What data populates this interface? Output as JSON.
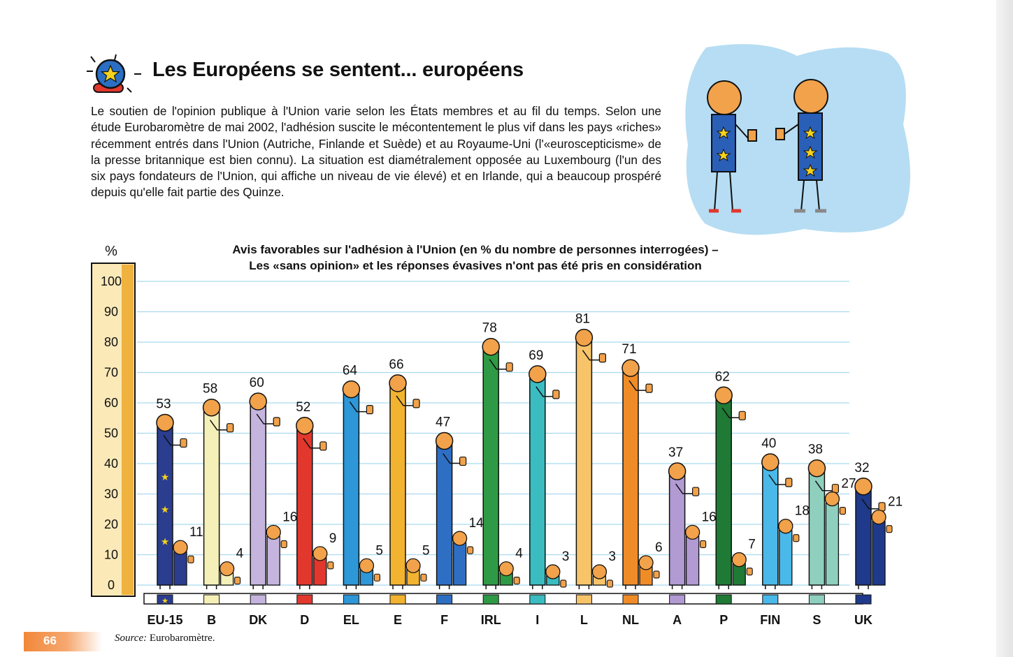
{
  "page": {
    "title": "Les Européens se sentent... européens",
    "intro": "Le soutien de l'opinion publique à l'Union varie selon les États membres et au fil du temps. Selon une étude Eurobaromètre de mai 2002, l'adhésion suscite le mécontentement le plus vif dans les pays «riches» récemment entrés dans l'Union (Autriche, Finlande et Suède) et au Royaume-Uni (l'«euroscepticisme» de la presse britannique est bien connu). La situation est diamétralement opposée au Luxembourg (l'un des six pays fondateurs de l'Union, qui affiche un niveau de vie élevé) et en Irlande, qui a beaucoup prospéré depuis qu'elle fait partie des Quinze.",
    "page_number": "66",
    "source_label": "Source:",
    "source_value": "Eurobaromètre."
  },
  "chart_data": {
    "type": "bar",
    "title_line1": "Avis favorables sur l'adhésion à l'Union (en % du nombre de personnes interrogées) –",
    "title_line2": "Les «sans opinion» et les réponses évasives n'ont pas été pris en considération",
    "ylabel": "%",
    "ylim": [
      0,
      100
    ],
    "yticks": [
      0,
      10,
      20,
      30,
      40,
      50,
      60,
      70,
      80,
      90,
      100
    ],
    "grid": true,
    "categories": [
      "EU-15",
      "B",
      "DK",
      "D",
      "EL",
      "E",
      "F",
      "IRL",
      "I",
      "L",
      "NL",
      "A",
      "P",
      "FIN",
      "S",
      "UK"
    ],
    "colors": [
      "#2a3d8f",
      "#f5f0b8",
      "#c5b5de",
      "#e2372d",
      "#2d97d8",
      "#f2b330",
      "#2e6fc4",
      "#2f9a45",
      "#3bbcc0",
      "#f7c46a",
      "#ef8c28",
      "#b29ad3",
      "#1e7a35",
      "#4ab8e8",
      "#8fcfbe",
      "#1f3a8a"
    ],
    "series": [
      {
        "values": [
          53,
          58,
          60,
          52,
          64,
          66,
          47,
          78,
          69,
          81,
          71,
          37,
          62,
          40,
          38,
          32
        ]
      },
      {
        "values": [
          11,
          4,
          16,
          9,
          5,
          5,
          14,
          4,
          3,
          3,
          6,
          16,
          7,
          18,
          27,
          21
        ]
      }
    ]
  }
}
